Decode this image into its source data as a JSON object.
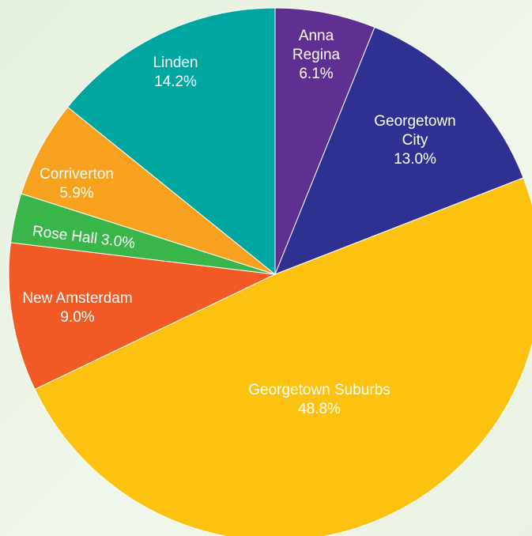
{
  "chart_data": {
    "type": "pie",
    "categories": [
      "Anna Regina",
      "Georgetown City",
      "Georgetown Suburbs",
      "New Amsterdam",
      "Rose Hall",
      "Corriverton",
      "Linden"
    ],
    "values": [
      6.1,
      13.0,
      48.8,
      9.0,
      3.0,
      5.9,
      14.2
    ],
    "value_labels": [
      "6.1%",
      "13.0%",
      "48.8%",
      "9.0%",
      "3.0%",
      "5.9%",
      "14.2%"
    ],
    "colors": [
      "#5f2f91",
      "#2e3192",
      "#fdc210",
      "#f15a24",
      "#39b54a",
      "#f7a11e",
      "#00a6a0"
    ]
  }
}
